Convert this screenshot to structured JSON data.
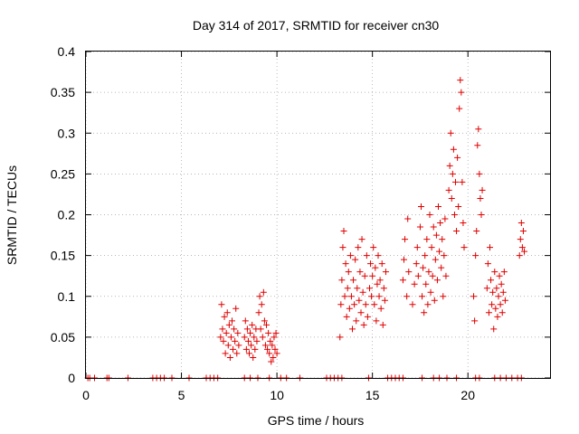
{
  "chart_data": {
    "type": "scatter",
    "title": "Day 314 of 2017, SRMTID for receiver cn30",
    "xlabel": "GPS time / hours",
    "ylabel": "SRMTID / TECUs",
    "xlim": [
      0,
      24.3
    ],
    "ylim": [
      0,
      0.4
    ],
    "grid": true,
    "xticks": [
      0,
      5,
      10,
      15,
      20
    ],
    "xtick_labels": [
      "0",
      "5",
      "10",
      "15",
      "20"
    ],
    "yticks": [
      0,
      0.05,
      0.1,
      0.15,
      0.2,
      0.25,
      0.3,
      0.35,
      0.4
    ],
    "ytick_labels": [
      "0",
      "0.05",
      "0.1",
      "0.15",
      "0.2",
      "0.25",
      "0.3",
      "0.35",
      "0.4"
    ],
    "marker": "+",
    "color": "#e00000",
    "series": [
      {
        "name": "SRMTID",
        "points": [
          [
            0.1,
            0
          ],
          [
            0.2,
            0
          ],
          [
            0.45,
            0
          ],
          [
            1.1,
            0
          ],
          [
            1.2,
            0
          ],
          [
            2.2,
            0
          ],
          [
            3.5,
            0
          ],
          [
            3.7,
            0
          ],
          [
            3.9,
            0
          ],
          [
            4.1,
            0
          ],
          [
            4.5,
            0
          ],
          [
            5.4,
            0
          ],
          [
            6.3,
            0
          ],
          [
            6.5,
            0
          ],
          [
            6.7,
            0
          ],
          [
            6.9,
            0
          ],
          [
            8.3,
            0
          ],
          [
            8.6,
            0
          ],
          [
            9.0,
            0
          ],
          [
            9.6,
            0
          ],
          [
            10.2,
            0
          ],
          [
            10.5,
            0
          ],
          [
            11.2,
            0
          ],
          [
            12.6,
            0
          ],
          [
            12.8,
            0
          ],
          [
            13.0,
            0
          ],
          [
            13.2,
            0
          ],
          [
            13.4,
            0
          ],
          [
            14.8,
            0
          ],
          [
            15.8,
            0
          ],
          [
            16.0,
            0
          ],
          [
            16.2,
            0
          ],
          [
            16.4,
            0
          ],
          [
            16.6,
            0
          ],
          [
            17.6,
            0
          ],
          [
            18.2,
            0
          ],
          [
            18.5,
            0
          ],
          [
            18.9,
            0
          ],
          [
            19.4,
            0
          ],
          [
            20.4,
            0
          ],
          [
            20.6,
            0
          ],
          [
            21.4,
            0
          ],
          [
            21.7,
            0
          ],
          [
            22.0,
            0
          ],
          [
            22.3,
            0
          ],
          [
            22.6,
            0
          ],
          [
            22.8,
            0
          ],
          [
            7.05,
            0.05
          ],
          [
            7.1,
            0.09
          ],
          [
            7.15,
            0.06
          ],
          [
            7.2,
            0.045
          ],
          [
            7.25,
            0.075
          ],
          [
            7.3,
            0.03
          ],
          [
            7.35,
            0.055
          ],
          [
            7.4,
            0.08
          ],
          [
            7.45,
            0.04
          ],
          [
            7.5,
            0.065
          ],
          [
            7.55,
            0.025
          ],
          [
            7.6,
            0.05
          ],
          [
            7.65,
            0.07
          ],
          [
            7.7,
            0.035
          ],
          [
            7.75,
            0.06
          ],
          [
            7.8,
            0.045
          ],
          [
            7.85,
            0.085
          ],
          [
            7.9,
            0.03
          ],
          [
            7.95,
            0.055
          ],
          [
            8.0,
            0.04
          ],
          [
            8.3,
            0.05
          ],
          [
            8.35,
            0.07
          ],
          [
            8.4,
            0.035
          ],
          [
            8.45,
            0.06
          ],
          [
            8.5,
            0.045
          ],
          [
            8.55,
            0.03
          ],
          [
            8.6,
            0.055
          ],
          [
            8.65,
            0.04
          ],
          [
            8.7,
            0.065
          ],
          [
            8.75,
            0.025
          ],
          [
            8.8,
            0.05
          ],
          [
            8.85,
            0.035
          ],
          [
            8.9,
            0.06
          ],
          [
            8.95,
            0.045
          ],
          [
            9.05,
            0.08
          ],
          [
            9.1,
            0.1
          ],
          [
            9.15,
            0.06
          ],
          [
            9.2,
            0.09
          ],
          [
            9.25,
            0.05
          ],
          [
            9.3,
            0.105
          ],
          [
            9.35,
            0.07
          ],
          [
            9.4,
            0.04
          ],
          [
            9.45,
            0.065
          ],
          [
            9.5,
            0.035
          ],
          [
            9.55,
            0.055
          ],
          [
            9.6,
            0.03
          ],
          [
            9.65,
            0.045
          ],
          [
            9.7,
            0.02
          ],
          [
            9.75,
            0.04
          ],
          [
            9.8,
            0.025
          ],
          [
            9.85,
            0.05
          ],
          [
            9.9,
            0.035
          ],
          [
            9.95,
            0.055
          ],
          [
            10.0,
            0.03
          ],
          [
            13.3,
            0.05
          ],
          [
            13.35,
            0.09
          ],
          [
            13.4,
            0.12
          ],
          [
            13.45,
            0.16
          ],
          [
            13.5,
            0.18
          ],
          [
            13.55,
            0.1
          ],
          [
            13.6,
            0.14
          ],
          [
            13.65,
            0.075
          ],
          [
            13.7,
            0.11
          ],
          [
            13.75,
            0.13
          ],
          [
            13.8,
            0.085
          ],
          [
            13.85,
            0.15
          ],
          [
            13.9,
            0.1
          ],
          [
            13.95,
            0.06
          ],
          [
            14.0,
            0.12
          ],
          [
            14.05,
            0.09
          ],
          [
            14.1,
            0.145
          ],
          [
            14.15,
            0.07
          ],
          [
            14.2,
            0.11
          ],
          [
            14.25,
            0.16
          ],
          [
            14.3,
            0.095
          ],
          [
            14.35,
            0.13
          ],
          [
            14.4,
            0.08
          ],
          [
            14.45,
            0.17
          ],
          [
            14.5,
            0.105
          ],
          [
            14.55,
            0.065
          ],
          [
            14.6,
            0.125
          ],
          [
            14.65,
            0.09
          ],
          [
            14.7,
            0.15
          ],
          [
            14.75,
            0.075
          ],
          [
            14.85,
            0.11
          ],
          [
            14.9,
            0.14
          ],
          [
            14.95,
            0.1
          ],
          [
            15.0,
            0.125
          ],
          [
            15.05,
            0.16
          ],
          [
            15.1,
            0.09
          ],
          [
            15.15,
            0.135
          ],
          [
            15.2,
            0.07
          ],
          [
            15.25,
            0.115
          ],
          [
            15.3,
            0.15
          ],
          [
            15.35,
            0.1
          ],
          [
            15.4,
            0.12
          ],
          [
            15.45,
            0.085
          ],
          [
            15.5,
            0.14
          ],
          [
            15.55,
            0.065
          ],
          [
            15.6,
            0.11
          ],
          [
            15.65,
            0.095
          ],
          [
            15.7,
            0.13
          ],
          [
            16.6,
            0.12
          ],
          [
            16.65,
            0.145
          ],
          [
            16.7,
            0.17
          ],
          [
            16.8,
            0.1
          ],
          [
            16.85,
            0.195
          ],
          [
            16.9,
            0.13
          ],
          [
            17.1,
            0.09
          ],
          [
            17.2,
            0.115
          ],
          [
            17.3,
            0.14
          ],
          [
            17.35,
            0.16
          ],
          [
            17.4,
            0.125
          ],
          [
            17.5,
            0.185
          ],
          [
            17.55,
            0.21
          ],
          [
            17.6,
            0.1
          ],
          [
            17.65,
            0.135
          ],
          [
            17.7,
            0.08
          ],
          [
            17.75,
            0.15
          ],
          [
            17.8,
            0.115
          ],
          [
            17.85,
            0.17
          ],
          [
            17.9,
            0.09
          ],
          [
            17.95,
            0.13
          ],
          [
            18.0,
            0.2
          ],
          [
            18.05,
            0.105
          ],
          [
            18.1,
            0.16
          ],
          [
            18.15,
            0.125
          ],
          [
            18.2,
            0.185
          ],
          [
            18.25,
            0.095
          ],
          [
            18.3,
            0.145
          ],
          [
            18.35,
            0.175
          ],
          [
            18.4,
            0.12
          ],
          [
            18.45,
            0.21
          ],
          [
            18.5,
            0.155
          ],
          [
            18.55,
            0.19
          ],
          [
            18.6,
            0.135
          ],
          [
            18.65,
            0.17
          ],
          [
            18.7,
            0.1
          ],
          [
            18.75,
            0.15
          ],
          [
            18.8,
            0.195
          ],
          [
            18.85,
            0.125
          ],
          [
            19.0,
            0.23
          ],
          [
            19.05,
            0.26
          ],
          [
            19.1,
            0.3
          ],
          [
            19.15,
            0.22
          ],
          [
            19.2,
            0.25
          ],
          [
            19.25,
            0.28
          ],
          [
            19.3,
            0.2
          ],
          [
            19.35,
            0.24
          ],
          [
            19.4,
            0.18
          ],
          [
            19.45,
            0.27
          ],
          [
            19.5,
            0.21
          ],
          [
            19.55,
            0.33
          ],
          [
            19.6,
            0.365
          ],
          [
            19.65,
            0.35
          ],
          [
            19.7,
            0.24
          ],
          [
            19.75,
            0.19
          ],
          [
            19.8,
            0.16
          ],
          [
            20.3,
            0.1
          ],
          [
            20.35,
            0.07
          ],
          [
            20.4,
            0.15
          ],
          [
            20.45,
            0.18
          ],
          [
            20.5,
            0.285
          ],
          [
            20.55,
            0.305
          ],
          [
            20.6,
            0.25
          ],
          [
            20.65,
            0.22
          ],
          [
            20.7,
            0.2
          ],
          [
            20.75,
            0.23
          ],
          [
            21.0,
            0.11
          ],
          [
            21.05,
            0.14
          ],
          [
            21.1,
            0.08
          ],
          [
            21.15,
            0.16
          ],
          [
            21.2,
            0.12
          ],
          [
            21.25,
            0.09
          ],
          [
            21.3,
            0.105
          ],
          [
            21.35,
            0.06
          ],
          [
            21.4,
            0.13
          ],
          [
            21.45,
            0.085
          ],
          [
            21.5,
            0.11
          ],
          [
            21.55,
            0.075
          ],
          [
            21.6,
            0.1
          ],
          [
            21.65,
            0.125
          ],
          [
            21.7,
            0.09
          ],
          [
            21.75,
            0.115
          ],
          [
            21.8,
            0.08
          ],
          [
            21.85,
            0.105
          ],
          [
            21.9,
            0.13
          ],
          [
            21.95,
            0.095
          ],
          [
            22.7,
            0.15
          ],
          [
            22.75,
            0.17
          ],
          [
            22.8,
            0.19
          ],
          [
            22.85,
            0.16
          ],
          [
            22.9,
            0.18
          ],
          [
            22.95,
            0.155
          ]
        ]
      }
    ]
  }
}
